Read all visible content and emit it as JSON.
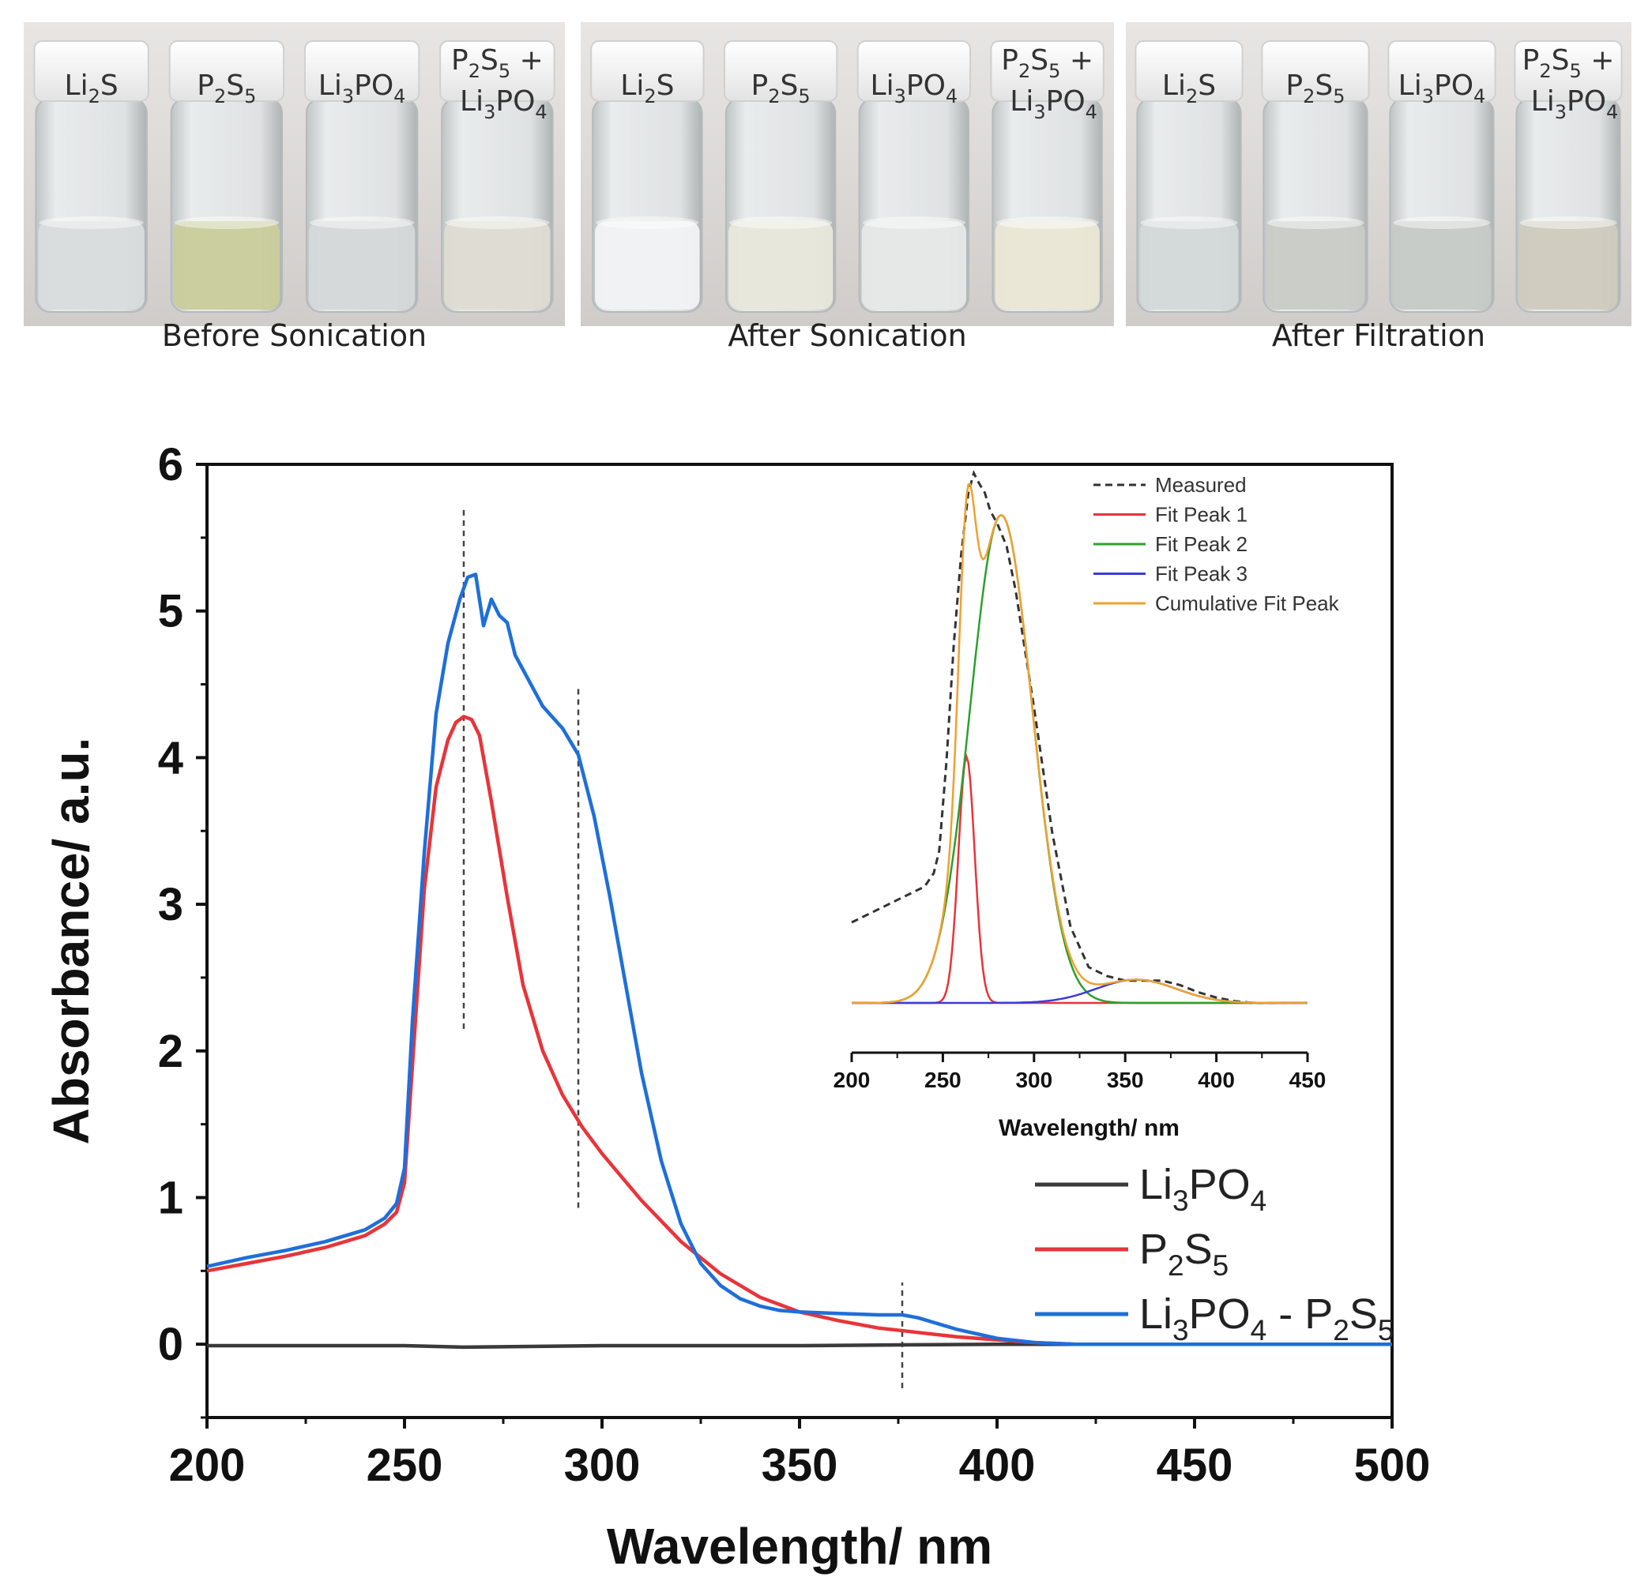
{
  "photos": {
    "panels": [
      {
        "caption": "Before Sonication",
        "vials": [
          {
            "sub": [
              {
                "t": "Li",
                "s": ""
              },
              {
                "t": "2",
                "s": "sub"
              },
              {
                "t": "S",
                "s": ""
              }
            ],
            "label": "Li2S",
            "liquid": "#d8dcdc"
          },
          {
            "sub": [
              {
                "t": "P",
                "s": ""
              },
              {
                "t": "2",
                "s": "sub"
              },
              {
                "t": "S",
                "s": ""
              },
              {
                "t": "5",
                "s": "sub"
              }
            ],
            "label": "P2S5",
            "liquid": "#c9cc9a"
          },
          {
            "sub": [
              {
                "t": "Li",
                "s": ""
              },
              {
                "t": "3",
                "s": "sub"
              },
              {
                "t": "PO",
                "s": ""
              },
              {
                "t": "4",
                "s": "sub"
              }
            ],
            "label": "Li3PO4",
            "liquid": "#d4d8d8"
          },
          {
            "sub": [
              {
                "t": "P",
                "s": ""
              },
              {
                "t": "2",
                "s": "sub"
              },
              {
                "t": "S",
                "s": ""
              },
              {
                "t": "5",
                "s": "sub"
              },
              {
                "t": " +",
                "s": ""
              }
            ],
            "sub2": [
              {
                "t": "Li",
                "s": ""
              },
              {
                "t": "3",
                "s": "sub"
              },
              {
                "t": "PO",
                "s": ""
              },
              {
                "t": "4",
                "s": "sub"
              }
            ],
            "label": "P2S5 + Li3PO4",
            "liquid": "#dedcd2"
          }
        ]
      },
      {
        "caption": "After Sonication",
        "vials": [
          {
            "sub": [
              {
                "t": "Li",
                "s": ""
              },
              {
                "t": "2",
                "s": "sub"
              },
              {
                "t": "S",
                "s": ""
              }
            ],
            "label": "Li2S",
            "liquid": "#f1f2f3"
          },
          {
            "sub": [
              {
                "t": "P",
                "s": ""
              },
              {
                "t": "2",
                "s": "sub"
              },
              {
                "t": "S",
                "s": ""
              },
              {
                "t": "5",
                "s": "sub"
              }
            ],
            "label": "P2S5",
            "liquid": "#e8e7da"
          },
          {
            "sub": [
              {
                "t": "Li",
                "s": ""
              },
              {
                "t": "3",
                "s": "sub"
              },
              {
                "t": "PO",
                "s": ""
              },
              {
                "t": "4",
                "s": "sub"
              }
            ],
            "label": "Li3PO4",
            "liquid": "#e6e8e7"
          },
          {
            "sub": [
              {
                "t": "P",
                "s": ""
              },
              {
                "t": "2",
                "s": "sub"
              },
              {
                "t": "S",
                "s": ""
              },
              {
                "t": "5",
                "s": "sub"
              },
              {
                "t": " +",
                "s": ""
              }
            ],
            "sub2": [
              {
                "t": "Li",
                "s": ""
              },
              {
                "t": "3",
                "s": "sub"
              },
              {
                "t": "PO",
                "s": ""
              },
              {
                "t": "4",
                "s": "sub"
              }
            ],
            "label": "P2S5 + Li3PO4",
            "liquid": "#ebe7d6"
          }
        ]
      },
      {
        "caption": "After Filtration",
        "vials": [
          {
            "sub": [
              {
                "t": "Li",
                "s": ""
              },
              {
                "t": "2",
                "s": "sub"
              },
              {
                "t": "S",
                "s": ""
              }
            ],
            "label": "Li2S",
            "liquid": "#d3d8d8"
          },
          {
            "sub": [
              {
                "t": "P",
                "s": ""
              },
              {
                "t": "2",
                "s": "sub"
              },
              {
                "t": "S",
                "s": ""
              },
              {
                "t": "5",
                "s": "sub"
              }
            ],
            "label": "P2S5",
            "liquid": "#c9ccc6"
          },
          {
            "sub": [
              {
                "t": "Li",
                "s": ""
              },
              {
                "t": "3",
                "s": "sub"
              },
              {
                "t": "PO",
                "s": ""
              },
              {
                "t": "4",
                "s": "sub"
              }
            ],
            "label": "Li3PO4",
            "liquid": "#c6cac6"
          },
          {
            "sub": [
              {
                "t": "P",
                "s": ""
              },
              {
                "t": "2",
                "s": "sub"
              },
              {
                "t": "S",
                "s": ""
              },
              {
                "t": "5",
                "s": "sub"
              },
              {
                "t": " +",
                "s": ""
              }
            ],
            "sub2": [
              {
                "t": "Li",
                "s": ""
              },
              {
                "t": "3",
                "s": "sub"
              },
              {
                "t": "PO",
                "s": ""
              },
              {
                "t": "4",
                "s": "sub"
              }
            ],
            "label": "P2S5 + Li3PO4",
            "liquid": "#cfcbbe"
          }
        ]
      }
    ]
  },
  "chart_data": [
    {
      "type": "line",
      "xlabel": "Wavelength/ nm",
      "ylabel": "Absorbance/ a.u.",
      "xlim": [
        200,
        500
      ],
      "ylim": [
        -0.5,
        6
      ],
      "xticks": [
        200,
        250,
        300,
        350,
        400,
        450,
        500
      ],
      "yticks": [
        0,
        1,
        2,
        3,
        4,
        5,
        6
      ],
      "vlines": [
        {
          "x": 265,
          "y": [
            2.15,
            5.7
          ]
        },
        {
          "x": 294,
          "y": [
            0.93,
            4.5
          ]
        },
        {
          "x": 376,
          "y": [
            -0.3,
            0.42
          ]
        }
      ],
      "legend_position": "bottom-right",
      "series": [
        {
          "name": "Li3PO4",
          "legend": [
            {
              "t": "Li",
              "s": ""
            },
            {
              "t": "3",
              "s": "sub"
            },
            {
              "t": "PO",
              "s": ""
            },
            {
              "t": "4",
              "s": "sub"
            }
          ],
          "color": "#3a3a3a",
          "x": [
            200,
            250,
            265,
            300,
            350,
            400,
            450,
            500
          ],
          "y": [
            -0.01,
            -0.01,
            -0.02,
            -0.01,
            -0.01,
            0.0,
            0.0,
            0.0
          ]
        },
        {
          "name": "P2S5",
          "legend": [
            {
              "t": "P",
              "s": ""
            },
            {
              "t": "2",
              "s": "sub"
            },
            {
              "t": "S",
              "s": ""
            },
            {
              "t": "5",
              "s": "sub"
            }
          ],
          "color": "#e8343a",
          "x": [
            200,
            210,
            220,
            230,
            240,
            245,
            248,
            250,
            252,
            255,
            258,
            261,
            263,
            265,
            267,
            269,
            272,
            276,
            280,
            285,
            290,
            295,
            300,
            310,
            320,
            330,
            340,
            350,
            360,
            370,
            380,
            390,
            400,
            410,
            420,
            430,
            450,
            500
          ],
          "y": [
            0.5,
            0.55,
            0.6,
            0.66,
            0.74,
            0.82,
            0.9,
            1.1,
            1.9,
            3.1,
            3.8,
            4.12,
            4.24,
            4.28,
            4.26,
            4.15,
            3.7,
            3.05,
            2.45,
            2.0,
            1.7,
            1.48,
            1.3,
            0.98,
            0.7,
            0.48,
            0.32,
            0.22,
            0.16,
            0.11,
            0.08,
            0.05,
            0.03,
            0.01,
            0.0,
            0.0,
            0.0,
            0.0
          ]
        },
        {
          "name": "Li3PO4 - P2S5",
          "legend": [
            {
              "t": "Li",
              "s": ""
            },
            {
              "t": "3",
              "s": "sub"
            },
            {
              "t": "PO",
              "s": ""
            },
            {
              "t": "4",
              "s": "sub"
            },
            {
              "t": " - P",
              "s": ""
            },
            {
              "t": "2",
              "s": "sub"
            },
            {
              "t": "S",
              "s": ""
            },
            {
              "t": "5",
              "s": "sub"
            }
          ],
          "color": "#1e6fd9",
          "x": [
            200,
            210,
            220,
            230,
            240,
            245,
            248,
            250,
            252,
            255,
            258,
            261,
            264,
            266,
            268,
            270,
            272,
            274,
            276,
            278,
            280,
            285,
            290,
            294,
            298,
            302,
            306,
            310,
            315,
            320,
            325,
            330,
            335,
            340,
            345,
            350,
            360,
            370,
            376,
            380,
            390,
            400,
            410,
            420,
            430,
            450,
            500
          ],
          "y": [
            0.53,
            0.59,
            0.64,
            0.7,
            0.78,
            0.86,
            0.96,
            1.2,
            2.2,
            3.35,
            4.3,
            4.78,
            5.08,
            5.23,
            5.25,
            4.9,
            5.08,
            4.97,
            4.92,
            4.7,
            4.6,
            4.35,
            4.2,
            4.02,
            3.6,
            3.05,
            2.45,
            1.85,
            1.25,
            0.82,
            0.55,
            0.4,
            0.31,
            0.26,
            0.23,
            0.22,
            0.21,
            0.2,
            0.2,
            0.18,
            0.1,
            0.04,
            0.01,
            0.0,
            0.0,
            0.0,
            0.0
          ]
        }
      ]
    },
    {
      "type": "line",
      "inset": true,
      "xlabel": "Wavelength/ nm",
      "xlim": [
        200,
        450
      ],
      "ylim": [
        0,
        6
      ],
      "xticks": [
        200,
        250,
        300,
        350,
        400,
        450
      ],
      "legend_position": "top-right",
      "series": [
        {
          "name": "Measured",
          "color": "#333333",
          "dashed": true,
          "x": [
            200,
            210,
            220,
            230,
            240,
            245,
            248,
            252,
            256,
            260,
            264,
            267,
            270,
            273,
            276,
            280,
            285,
            290,
            300,
            310,
            320,
            330,
            340,
            350,
            360,
            370,
            380,
            390,
            400,
            410,
            420,
            430,
            440,
            450
          ],
          "y": [
            0.9,
            1.0,
            1.1,
            1.2,
            1.3,
            1.45,
            1.7,
            2.7,
            4.0,
            5.0,
            5.7,
            5.92,
            5.8,
            5.7,
            5.5,
            5.35,
            5.1,
            4.6,
            3.3,
            1.9,
            0.85,
            0.4,
            0.3,
            0.25,
            0.25,
            0.25,
            0.2,
            0.12,
            0.06,
            0.02,
            0.0,
            0.0,
            0.0,
            0.0
          ]
        },
        {
          "name": "Fit Peak 1",
          "color": "#e8343a",
          "gauss": {
            "center": 263,
            "amp": 2.75,
            "sigma": 4.5
          }
        },
        {
          "name": "Fit Peak 2",
          "color": "#2ca02c",
          "gauss": {
            "center": 282,
            "amp": 5.45,
            "sigma": 17
          }
        },
        {
          "name": "Fit Peak 3",
          "color": "#3b3bdd",
          "gauss": {
            "center": 356,
            "amp": 0.26,
            "sigma": 22
          }
        },
        {
          "name": "Cumulative Fit Peak",
          "color": "#f0a030",
          "cumulative": true
        }
      ]
    }
  ]
}
